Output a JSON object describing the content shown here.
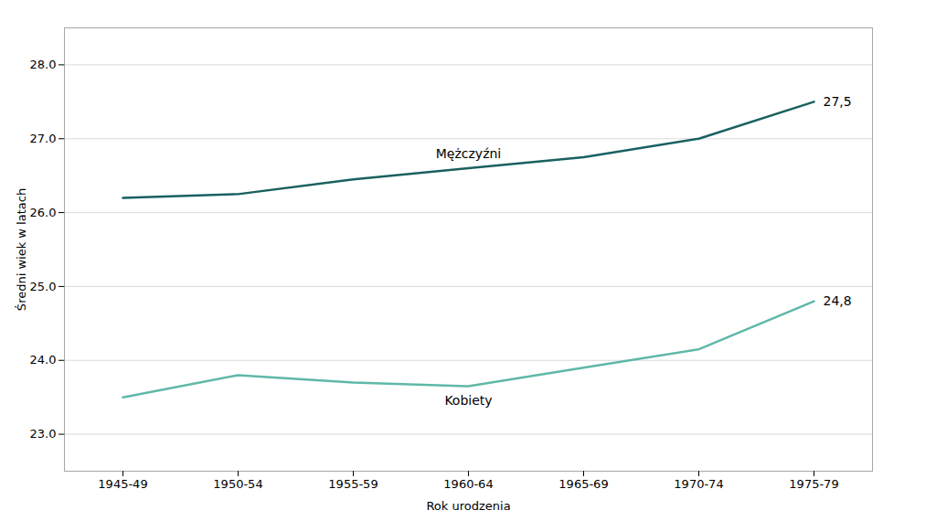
{
  "chart_data": {
    "type": "line",
    "categories": [
      "1945-49",
      "1950-54",
      "1955-59",
      "1960-64",
      "1965-69",
      "1970-74",
      "1975-79"
    ],
    "series": [
      {
        "name": "Mężczyźni",
        "color": "#1a6060",
        "values": [
          26.2,
          26.25,
          26.45,
          26.6,
          26.75,
          27.0,
          27.5
        ],
        "value_labels": [
          null,
          null,
          null,
          null,
          null,
          null,
          "27,5"
        ]
      },
      {
        "name": "Kobiety",
        "color": "#5fb8a8",
        "values": [
          23.5,
          23.8,
          23.7,
          23.65,
          23.9,
          24.15,
          24.8
        ],
        "value_labels": [
          null,
          null,
          null,
          null,
          null,
          null,
          "24,8"
        ]
      }
    ],
    "xlabel": "Rok urodzenia",
    "ylabel": "Średni wiek w latach",
    "ylim": [
      22.5,
      28.5
    ],
    "yticks": [
      23,
      24,
      25,
      26,
      27,
      28
    ],
    "grid": true
  }
}
